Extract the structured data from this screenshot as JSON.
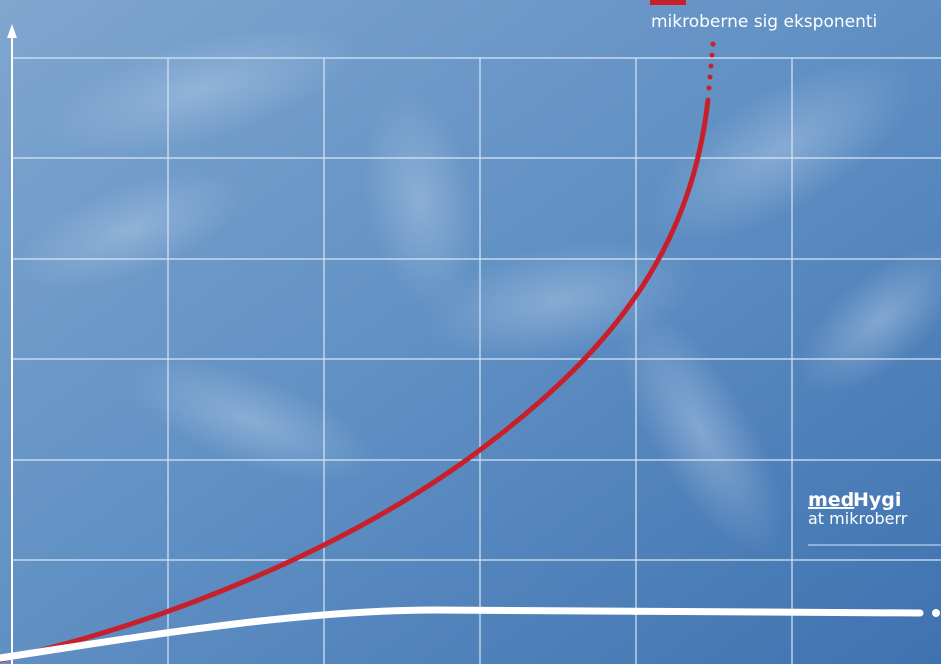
{
  "top_caption": "mikroberne sig eksponenti",
  "right_label": {
    "title_prefix": "med",
    "title_rest": "Hygi",
    "caption": "at mikroberr"
  }
}
